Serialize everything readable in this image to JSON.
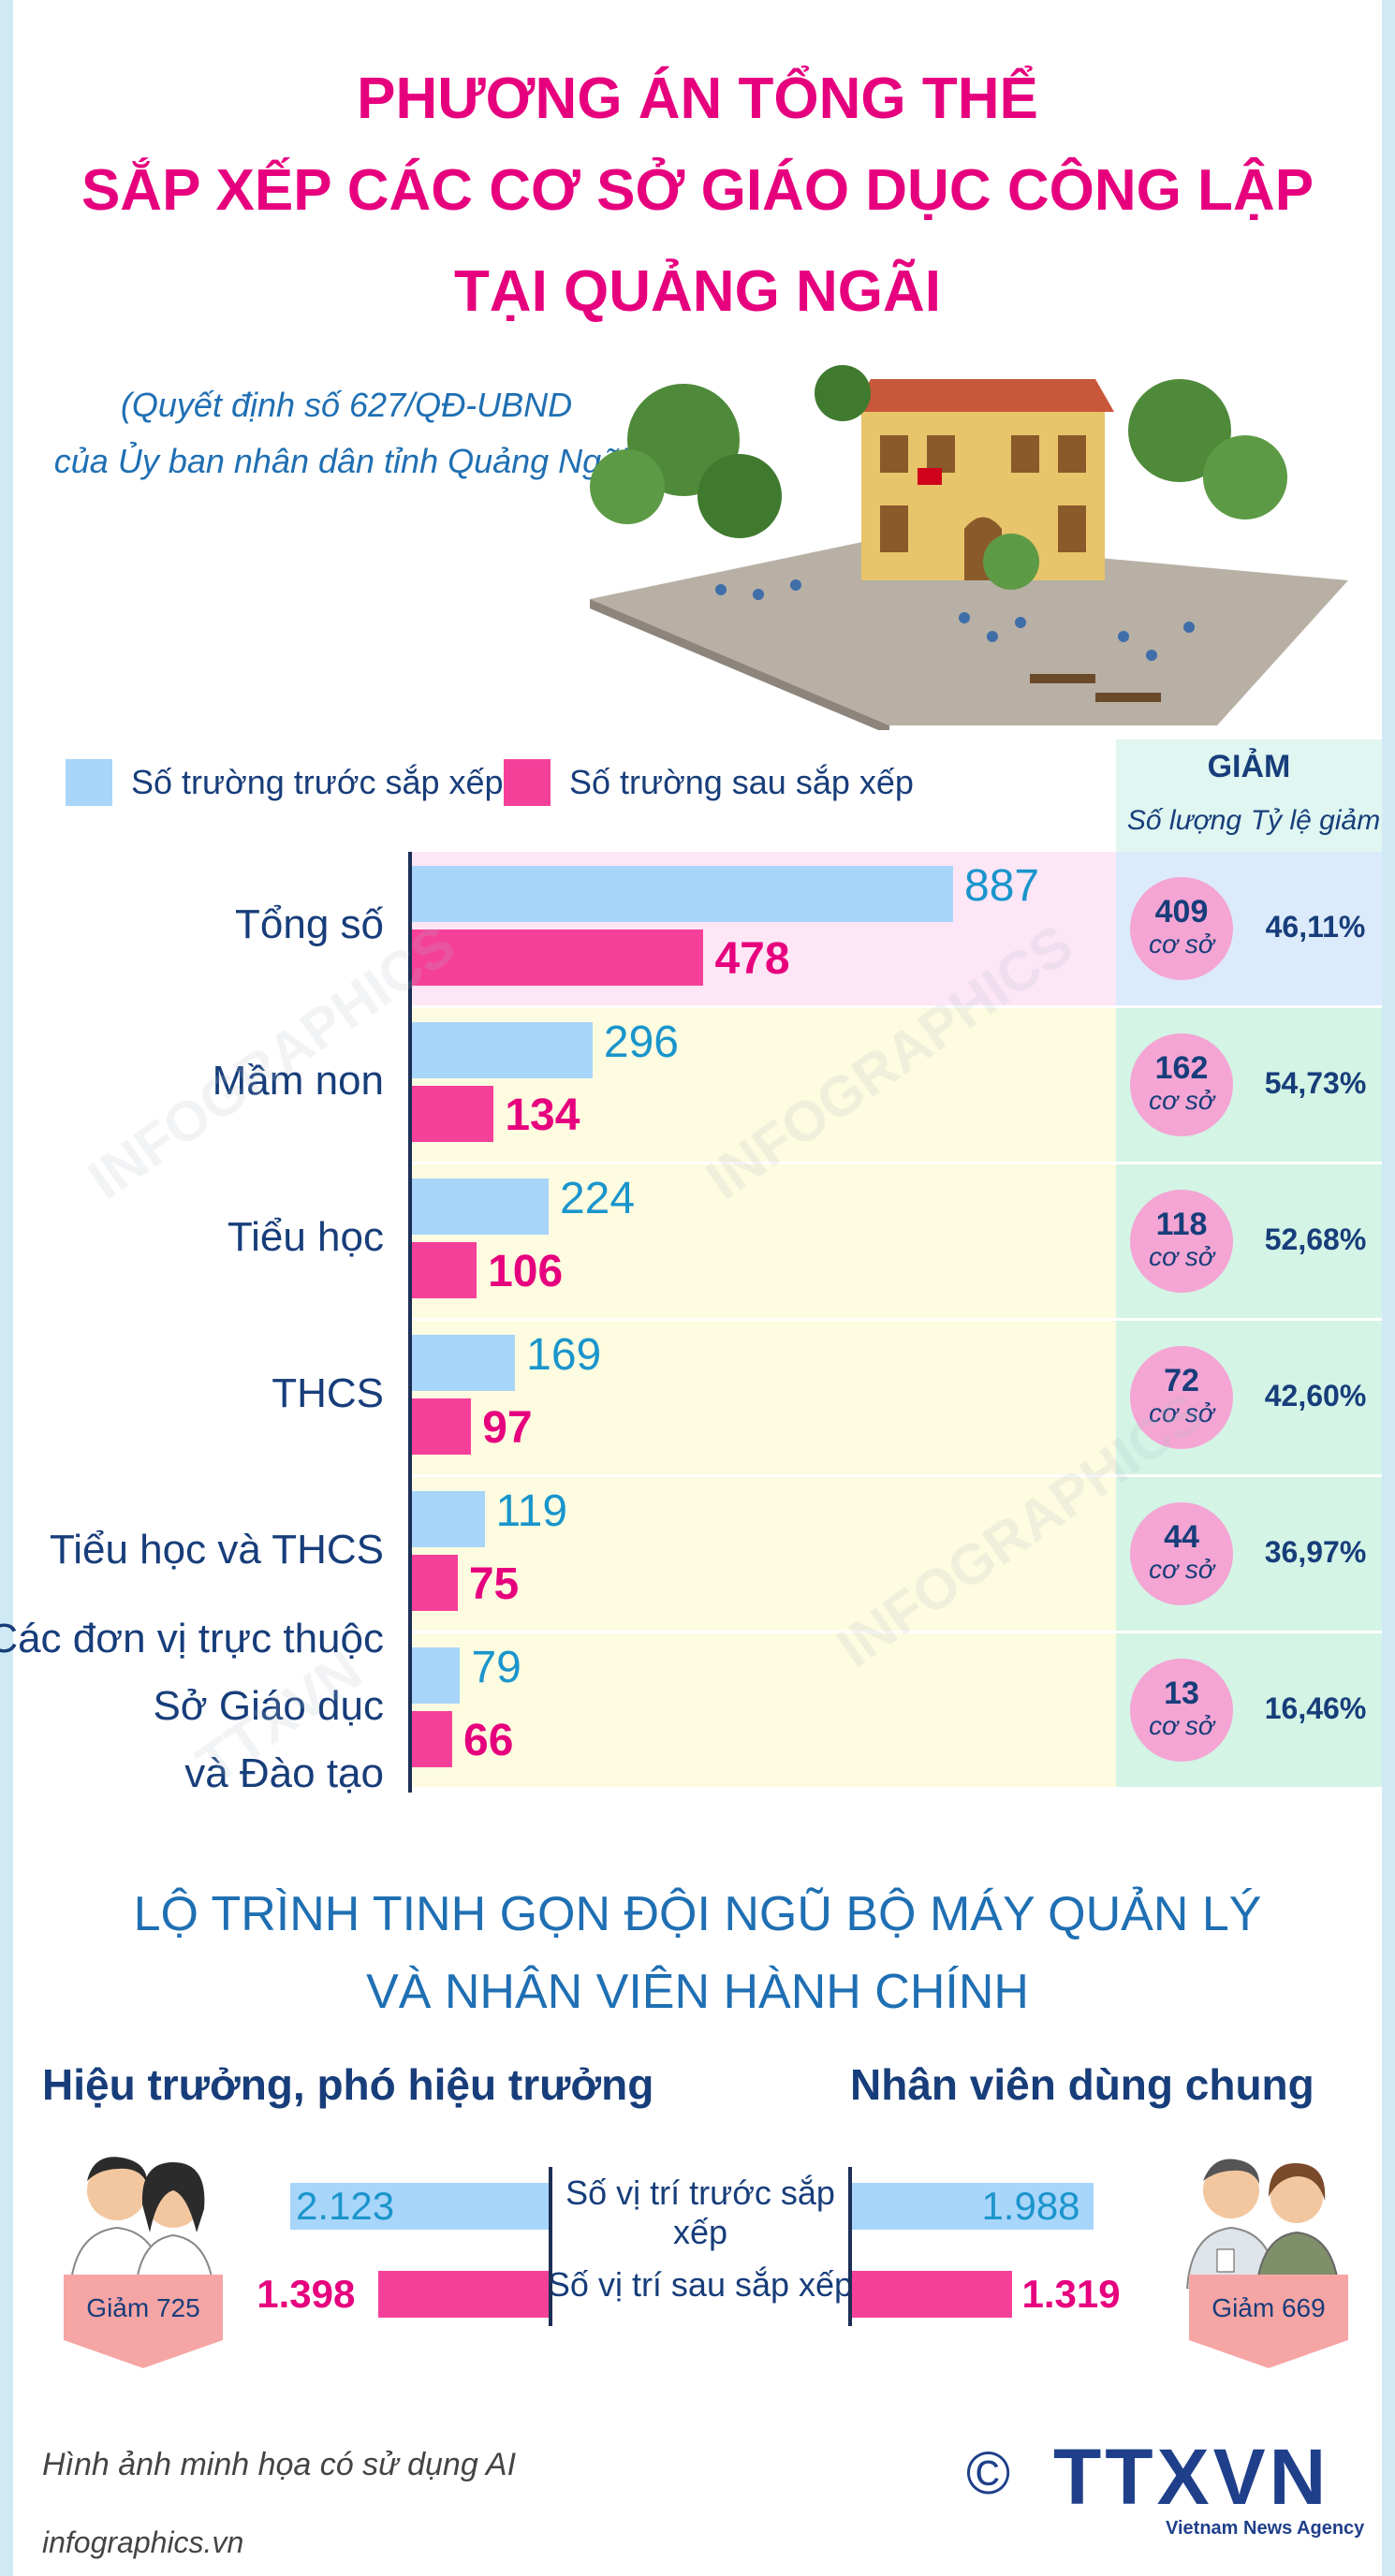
{
  "header": {
    "title_line1": "PHƯƠNG ÁN TỔNG THỂ",
    "title_line2": "SẮP XẾP CÁC CƠ SỞ GIÁO DỤC CÔNG LẬP",
    "title_line3": "TẠI QUẢNG NGÃI",
    "subtitle_line1": "(Quyết định số 627/QĐ-UBND",
    "subtitle_line2": "của Ủy ban nhân dân tỉnh Quảng Ngãi)"
  },
  "legend": {
    "before": "Số trường trước sắp xếp",
    "after": "Số trường sau sắp xếp"
  },
  "giam_header": {
    "title": "GIẢM",
    "col1": "Số lượng",
    "col2": "Tỷ lệ giảm"
  },
  "unit_label": "cơ sở",
  "colors": {
    "before": "#a8d5fa",
    "after": "#f5409a",
    "title": "#e6007e",
    "navy": "#173d7a",
    "row_total_bg": "#fde6f6",
    "row_bg": "#fdfbe0",
    "giam_total_bg": "#dcebfb",
    "giam_bg": "#d4f4e6"
  },
  "chart_data": [
    {
      "type": "bar",
      "orientation": "horizontal",
      "categories": [
        "Tổng số",
        "Mầm non",
        "Tiểu học",
        "THCS",
        "Tiểu học và THCS",
        "Các đơn vị trực thuộc Sở Giáo dục và Đào tạo"
      ],
      "category_lines": [
        [
          "Tổng số"
        ],
        [
          "Mầm non"
        ],
        [
          "Tiểu học"
        ],
        [
          "THCS"
        ],
        [
          "Tiểu học và THCS"
        ],
        [
          "Các đơn vị trực thuộc",
          "Sở Giáo dục",
          "và Đào tạo"
        ]
      ],
      "series": [
        {
          "name": "Số trường trước sắp xếp",
          "values": [
            887,
            296,
            224,
            169,
            119,
            79
          ]
        },
        {
          "name": "Số trường sau sắp xếp",
          "values": [
            478,
            134,
            106,
            97,
            75,
            66
          ]
        }
      ],
      "reduction": [
        409,
        162,
        118,
        72,
        44,
        13
      ],
      "reduction_rate": [
        "46,11%",
        "54,73%",
        "52,68%",
        "42,60%",
        "36,97%",
        "16,46%"
      ],
      "xlim": [
        0,
        887
      ],
      "legend_position": "top-left"
    },
    {
      "type": "bar",
      "orientation": "horizontal",
      "title": "Hiệu trưởng, phó hiệu trưởng",
      "categories": [
        "Số vị trí trước sắp xếp",
        "Số vị trí sau sắp xếp"
      ],
      "values": [
        2123,
        1398
      ],
      "value_labels": [
        "2.123",
        "1.398"
      ],
      "reduction_label": "Giảm 725"
    },
    {
      "type": "bar",
      "orientation": "horizontal",
      "title": "Nhân viên dùng chung",
      "categories": [
        "Số vị trí trước sắp xếp",
        "Số vị trí sau sắp xếp"
      ],
      "values": [
        1988,
        1319
      ],
      "value_labels": [
        "1.988",
        "1.319"
      ],
      "reduction_label": "Giảm 669"
    }
  ],
  "section2": {
    "title_line1": "LỘ TRÌNH TINH GỌN ĐỘI NGŨ BỘ MÁY QUẢN LÝ",
    "title_line2": "VÀ NHÂN VIÊN HÀNH CHÍNH",
    "label_before": "Số vị trí trước sắp xếp",
    "label_after": "Số vị trí sau sắp xếp"
  },
  "footer": {
    "note": "Hình ảnh minh họa có sử dụng AI",
    "site": "infographics.vn",
    "copyright": "©",
    "logo": "TTXVN",
    "agency": "Vietnam News Agency"
  }
}
